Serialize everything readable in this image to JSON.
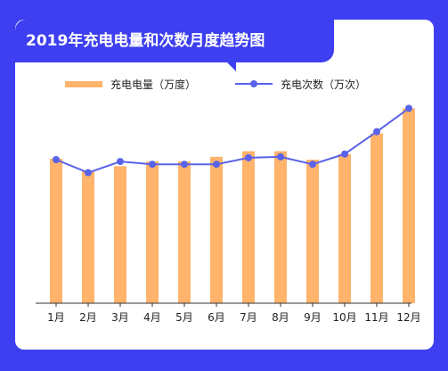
{
  "title": "2019年充电电量和次数月度趋势图",
  "colors": {
    "frame": "#3d3ff0",
    "bar": "#ffb36b",
    "line": "#5962e8"
  },
  "chart_data": {
    "type": "bar",
    "categories": [
      "1月",
      "2月",
      "3月",
      "4月",
      "5月",
      "6月",
      "7月",
      "8月",
      "9月",
      "10月",
      "11月",
      "12月"
    ],
    "series": [
      {
        "name": "充电电量（万度）",
        "type": "bar",
        "values": [
          155,
          142,
          147,
          152,
          152,
          157,
          163,
          163,
          154,
          160,
          182,
          209
        ]
      },
      {
        "name": "充电次数（万次）",
        "type": "line",
        "values": [
          154,
          140,
          152,
          149,
          149,
          149,
          156,
          157,
          149,
          160,
          184,
          209
        ]
      }
    ],
    "legend": "top",
    "grid": false,
    "ylim": [
      0,
      220
    ]
  }
}
